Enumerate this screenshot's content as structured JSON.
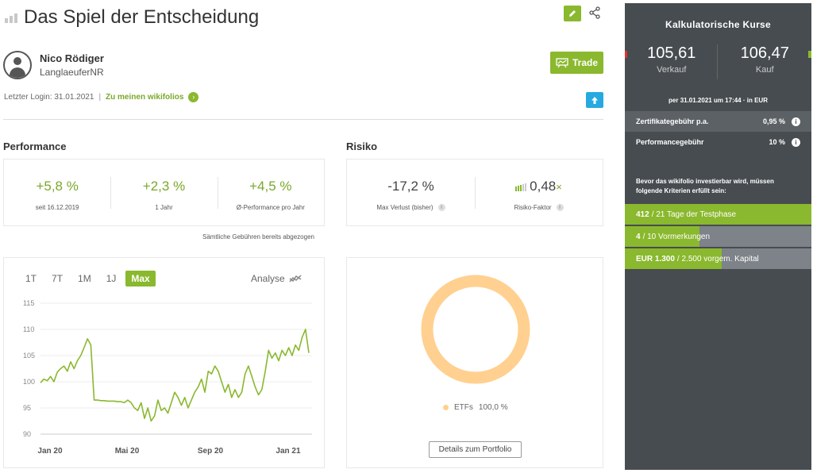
{
  "header": {
    "title": "Das Spiel der Entscheidung"
  },
  "user": {
    "name": "Nico Rödiger",
    "nickname": "LanglaeuferNR",
    "last_login": "Letzter Login: 31.01.2021",
    "wikifolios_link": "Zu meinen wikifolios"
  },
  "actions": {
    "trade_label": "Trade"
  },
  "performance": {
    "heading": "Performance",
    "kpis": [
      {
        "value": "+5,8 %",
        "label": "seit 16.12.2019"
      },
      {
        "value": "+2,3 %",
        "label": "1 Jahr"
      },
      {
        "value": "+4,5 %",
        "label": "Ø-Performance pro Jahr"
      }
    ],
    "fees_note": "Sämtliche Gebühren bereits abgezogen"
  },
  "risk": {
    "heading": "Risiko",
    "max_loss": {
      "value": "-17,2 %",
      "label": "Max Verlust (bisher)"
    },
    "risk_factor": {
      "value": "0,48",
      "unit": "×",
      "label": "Risiko-Faktor"
    }
  },
  "chart_tabs": {
    "tabs": [
      "1T",
      "7T",
      "1M",
      "1J",
      "Max"
    ],
    "active": "Max",
    "analyse_label": "Analyse"
  },
  "chart_data": {
    "type": "line",
    "title": "",
    "xlabel": "",
    "ylabel": "",
    "ylim": [
      90,
      115
    ],
    "yticks": [
      90,
      95,
      100,
      105,
      110,
      115
    ],
    "xticks": [
      "Jan 20",
      "Mai 20",
      "Sep 20",
      "Jan 21"
    ],
    "grid": true,
    "series": [
      {
        "color": "#8ab82e",
        "x": [
          0,
          1,
          2,
          3,
          4,
          5,
          6,
          7,
          8,
          9,
          10,
          11,
          12,
          13,
          14,
          15,
          16,
          17,
          18,
          19,
          20,
          21,
          22,
          23,
          24,
          25,
          26,
          27,
          28,
          29,
          30,
          31,
          32,
          33,
          34,
          35,
          36,
          37,
          38,
          39,
          40,
          41,
          42,
          43,
          44,
          45,
          46,
          47,
          48,
          49,
          50,
          51,
          52,
          53,
          54,
          55,
          56,
          57,
          58,
          59,
          60,
          61,
          62,
          63,
          64,
          65,
          66,
          67,
          68,
          69,
          70,
          71,
          72,
          73,
          74,
          75,
          76,
          77,
          78,
          79,
          80
        ],
        "values": [
          99.8,
          100.5,
          100.2,
          101.0,
          100.0,
          101.8,
          102.5,
          103.0,
          102.0,
          103.8,
          102.5,
          104.0,
          105.0,
          106.5,
          108.2,
          107.0,
          96.5,
          96.5,
          96.4,
          96.4,
          96.3,
          96.3,
          96.3,
          96.2,
          96.2,
          96.0,
          96.5,
          96.0,
          95.0,
          94.5,
          96.0,
          93.0,
          95.0,
          92.5,
          93.5,
          96.5,
          94.5,
          95.0,
          94.0,
          96.0,
          98.0,
          97.0,
          95.5,
          97.0,
          95.0,
          96.5,
          98.0,
          99.0,
          100.5,
          98.0,
          102.0,
          101.5,
          103.0,
          102.0,
          100.0,
          98.0,
          99.5,
          97.0,
          98.5,
          97.0,
          98.0,
          101.5,
          103.0,
          101.0,
          99.0,
          97.5,
          98.5,
          102.0,
          106.0,
          104.5,
          105.5,
          104.0,
          106.0,
          105.0,
          106.5,
          105.0,
          107.0,
          106.0,
          108.5,
          110.0,
          105.5
        ]
      }
    ]
  },
  "portfolio": {
    "legend_label": "ETFs",
    "legend_value": "100,0 %",
    "share": 1.0,
    "donut_color": "#ffd08f",
    "details_button": "Details zum Portfolio"
  },
  "sidebar": {
    "title": "Kalkulatorische Kurse",
    "sell_price": "105,61",
    "sell_label": "Verkauf",
    "buy_price": "106,47",
    "buy_label": "Kauf",
    "price_date": "per 31.01.2021 um 17:44 · in EUR",
    "fees": [
      {
        "label": "Zertifikategebühr p.a.",
        "value": "0,95 %"
      },
      {
        "label": "Performancegebühr",
        "value": "10 %"
      }
    ],
    "criteria_text": "Bevor das wikifolio investierbar wird, müssen folgende Kriterien erfüllt sein:",
    "criteria": [
      {
        "bold": "412",
        "rest": "/ 21 Tage der Testphase",
        "progress": 1.0
      },
      {
        "bold": "4",
        "rest": "/ 10 Vormerkungen",
        "progress": 0.4
      },
      {
        "bold": "EUR 1.300",
        "rest": "/ 2.500 vorgem. Kapital",
        "progress": 0.52
      }
    ]
  }
}
